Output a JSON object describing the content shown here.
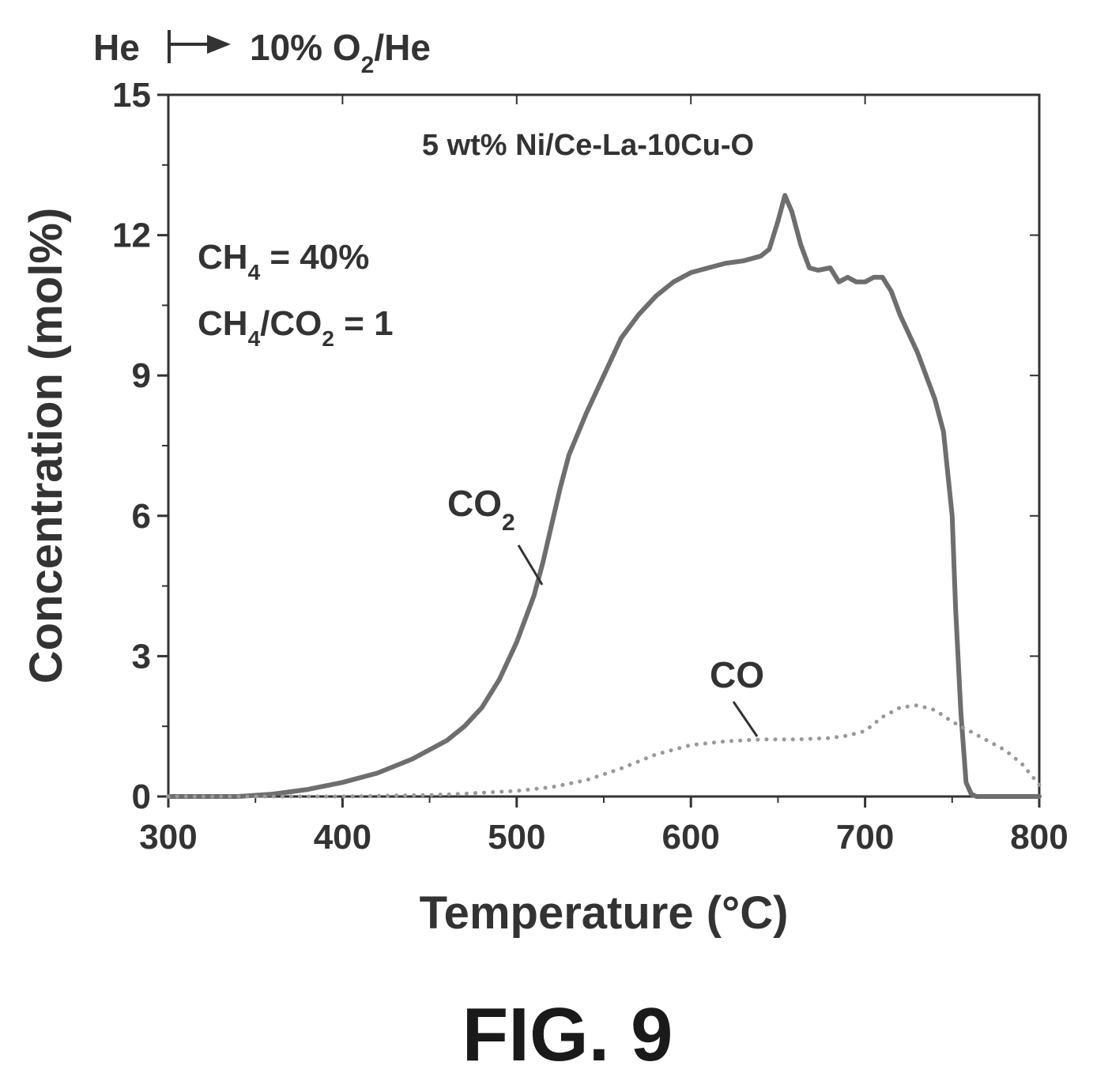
{
  "header": {
    "left": "He",
    "right_prefix": "10% O",
    "right_sub": "2",
    "right_suffix": "/He"
  },
  "figure_label": "FIG. 9",
  "chart_data": {
    "type": "line",
    "title": "",
    "xlabel": "Temperature (°C)",
    "ylabel": "Concentration (mol%)",
    "xlim": [
      300,
      800
    ],
    "ylim": [
      0,
      15
    ],
    "x_ticks": [
      300,
      400,
      500,
      600,
      700,
      800
    ],
    "y_ticks": [
      0,
      3,
      6,
      9,
      12,
      15
    ],
    "grid": false,
    "legend": "none",
    "annotations": {
      "sample": "5 wt% Ni/Ce-La-10Cu-O",
      "ch4_line": {
        "prefix": "CH",
        "sub": "4",
        "suffix": " = 40%"
      },
      "ratio_line": {
        "prefix1": "CH",
        "sub1": "4",
        "mid": "/CO",
        "sub2": "2",
        "suffix": " = 1"
      }
    },
    "series": [
      {
        "name": "CO2",
        "label_text": "CO",
        "label_sub": "2",
        "style": "solid",
        "color": "#6e6e6e",
        "x": [
          300,
          340,
          360,
          380,
          400,
          420,
          440,
          460,
          470,
          480,
          490,
          500,
          510,
          515,
          520,
          525,
          530,
          540,
          550,
          560,
          570,
          580,
          590,
          600,
          610,
          620,
          630,
          640,
          645,
          650,
          654,
          658,
          663,
          668,
          673,
          680,
          685,
          690,
          695,
          700,
          705,
          710,
          715,
          720,
          730,
          740,
          745,
          750,
          752,
          755,
          758,
          761,
          764,
          770,
          800
        ],
        "y": [
          0,
          0,
          0.05,
          0.15,
          0.3,
          0.5,
          0.8,
          1.2,
          1.5,
          1.9,
          2.5,
          3.3,
          4.3,
          5.0,
          5.8,
          6.6,
          7.3,
          8.2,
          9.0,
          9.8,
          10.3,
          10.7,
          11.0,
          11.2,
          11.3,
          11.4,
          11.45,
          11.55,
          11.7,
          12.3,
          12.85,
          12.5,
          11.8,
          11.3,
          11.25,
          11.3,
          11.0,
          11.1,
          11.0,
          11.0,
          11.1,
          11.1,
          10.8,
          10.3,
          9.5,
          8.5,
          7.8,
          6.0,
          4.0,
          1.8,
          0.3,
          0.05,
          0,
          0,
          0
        ]
      },
      {
        "name": "CO",
        "label_text": "CO",
        "style": "dotted",
        "color": "#999999",
        "x": [
          300,
          400,
          430,
          450,
          470,
          500,
          520,
          540,
          560,
          580,
          600,
          620,
          640,
          660,
          680,
          690,
          700,
          710,
          720,
          730,
          740,
          750,
          760,
          770,
          780,
          790,
          800
        ],
        "y": [
          0,
          0,
          0.02,
          0.03,
          0.06,
          0.12,
          0.2,
          0.35,
          0.6,
          0.9,
          1.1,
          1.18,
          1.22,
          1.22,
          1.25,
          1.3,
          1.4,
          1.7,
          1.9,
          1.95,
          1.85,
          1.6,
          1.4,
          1.2,
          1.0,
          0.7,
          0.25
        ]
      }
    ]
  }
}
